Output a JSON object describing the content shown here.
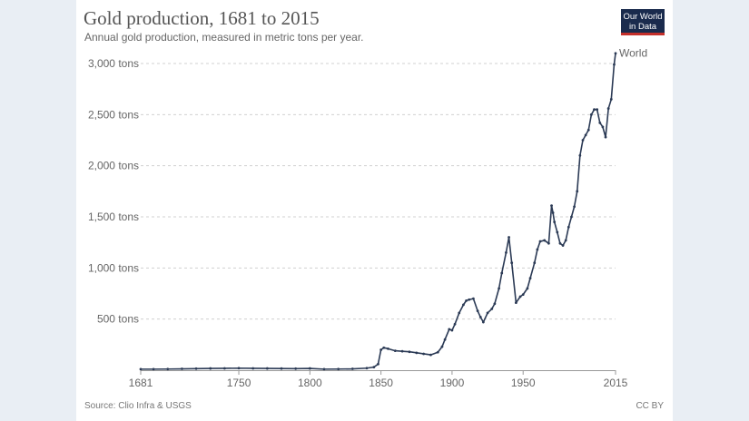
{
  "header": {
    "title": "Gold production, 1681 to 2015",
    "subtitle": "Annual gold production, measured in metric tons per year.",
    "logo_line1": "Our World",
    "logo_line2": "in Data"
  },
  "footer": {
    "source": "Source: Clio Infra & USGS",
    "license": "CC BY"
  },
  "colors": {
    "line": "#2b3a55",
    "grid": "#d0d0d0",
    "background": "#e9eef4"
  },
  "chart_data": {
    "type": "line",
    "title": "Gold production, 1681 to 2015",
    "subtitle": "Annual gold production, measured in metric tons per year.",
    "xlabel": "",
    "ylabel": "",
    "xlim": [
      1681,
      2015
    ],
    "ylim": [
      0,
      3000
    ],
    "x_ticks": [
      1681,
      1750,
      1800,
      1850,
      1900,
      1950,
      2015
    ],
    "y_ticks": [
      500,
      1000,
      1500,
      2000,
      2500,
      3000
    ],
    "y_tick_labels": [
      "500 tons",
      "1,000 tons",
      "1,500 tons",
      "2,000 tons",
      "2,500 tons",
      "3,000 tons"
    ],
    "grid": true,
    "series": [
      {
        "name": "World",
        "x": [
          1681,
          1690,
          1700,
          1710,
          1720,
          1730,
          1740,
          1750,
          1760,
          1770,
          1780,
          1790,
          1800,
          1810,
          1820,
          1830,
          1840,
          1845,
          1848,
          1850,
          1852,
          1855,
          1860,
          1865,
          1870,
          1875,
          1880,
          1885,
          1890,
          1893,
          1895,
          1898,
          1900,
          1902,
          1905,
          1908,
          1910,
          1912,
          1915,
          1918,
          1920,
          1922,
          1925,
          1928,
          1930,
          1933,
          1935,
          1938,
          1940,
          1942,
          1945,
          1948,
          1950,
          1953,
          1955,
          1958,
          1960,
          1962,
          1965,
          1968,
          1970,
          1971,
          1972,
          1974,
          1976,
          1978,
          1980,
          1982,
          1984,
          1986,
          1988,
          1990,
          1992,
          1994,
          1996,
          1998,
          2000,
          2002,
          2004,
          2006,
          2008,
          2010,
          2012,
          2014,
          2015
        ],
        "values": [
          10,
          10,
          11,
          13,
          15,
          17,
          18,
          20,
          18,
          17,
          16,
          15,
          17,
          10,
          11,
          13,
          20,
          30,
          60,
          200,
          220,
          210,
          190,
          185,
          180,
          170,
          160,
          150,
          175,
          230,
          300,
          400,
          390,
          450,
          560,
          640,
          680,
          690,
          700,
          580,
          520,
          470,
          560,
          600,
          650,
          800,
          950,
          1150,
          1300,
          1050,
          660,
          720,
          740,
          800,
          900,
          1050,
          1180,
          1260,
          1270,
          1240,
          1610,
          1540,
          1450,
          1350,
          1240,
          1220,
          1270,
          1400,
          1500,
          1600,
          1750,
          2100,
          2250,
          2300,
          2350,
          2500,
          2550,
          2550,
          2420,
          2380,
          2280,
          2560,
          2650,
          2990,
          3100
        ]
      }
    ],
    "legend": "end-of-line label"
  }
}
